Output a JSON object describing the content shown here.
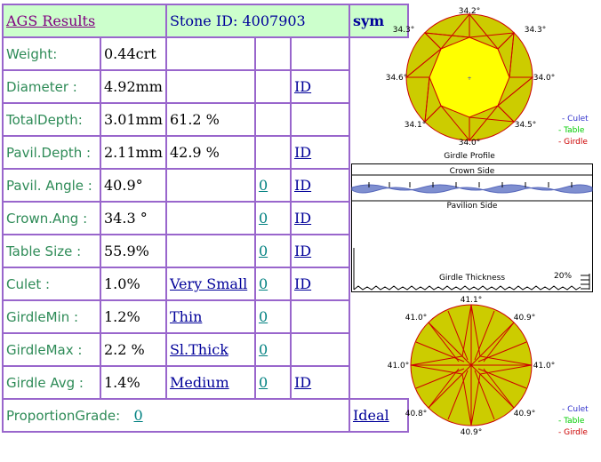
{
  "header": {
    "title": "AGS Results",
    "stone_id": "Stone ID:  4007903",
    "sym": "sym"
  },
  "rows": [
    {
      "label": "Weight:",
      "value": "0.44crt",
      "extra": "",
      "grade": "",
      "sym": ""
    },
    {
      "label": "Diameter :",
      "value": "4.92mm",
      "extra": "",
      "grade": "",
      "sym": "ID"
    },
    {
      "label": "TotalDepth:",
      "value": "3.01mm",
      "extra": "61.2 %",
      "grade": "",
      "sym": ""
    },
    {
      "label": "Pavil.Depth :",
      "value": "2.11mm",
      "extra": "42.9 %",
      "grade": "",
      "sym": "ID"
    },
    {
      "label": "Pavil. Angle :",
      "value": "40.9°",
      "extra": "",
      "grade": "0",
      "sym": "ID"
    },
    {
      "label": "Crown.Ang :",
      "value": "34.3 °",
      "extra": "",
      "grade": "0",
      "sym": "ID"
    },
    {
      "label": "Table Size :",
      "value": "55.9%",
      "extra": "",
      "grade": "0",
      "sym": "ID"
    },
    {
      "label": "Culet :",
      "value": "1.0%",
      "extra": "Very Small",
      "grade": "0",
      "sym": "ID"
    },
    {
      "label": "GirdleMin :",
      "value": "1.2%",
      "extra": "Thin",
      "grade": "0",
      "sym": ""
    },
    {
      "label": "GirdleMax :",
      "value": "2.2 %",
      "extra": "Sl.Thick",
      "grade": "0",
      "sym": ""
    },
    {
      "label": "Girdle Avg :",
      "value": "1.4%",
      "extra": "Medium",
      "grade": "0",
      "sym": "ID"
    }
  ],
  "proportion": {
    "label": "ProportionGrade:",
    "grade": "0",
    "result": "Ideal"
  },
  "crown_diagram": {
    "angles": {
      "top": "34.2°",
      "top_left": "34.3°",
      "top_right": "34.3°",
      "left": "34.6°",
      "right": "34.0°",
      "bottom_left": "34.1°",
      "bottom_right": "34.5°",
      "bottom": "34.0°"
    },
    "legend": [
      "- Culet",
      "- Table",
      "- Girdle"
    ],
    "colors": {
      "fill": "#cccc00",
      "table": "#ffff00",
      "lines": "#cc0000",
      "culet": "#3333cc",
      "table_legend": "#00cc00",
      "girdle_legend": "#cc0000"
    }
  },
  "girdle_profile": {
    "title": "Girdle Profile",
    "crown_side": "Crown Side",
    "pavilion_side": "Pavilion Side",
    "thickness_label": "Girdle Thickness",
    "thickness_value": "20%"
  },
  "pavilion_diagram": {
    "angles": {
      "top": "41.1°",
      "top_left": "41.0°",
      "top_right": "40.9°",
      "left": "41.0°",
      "right": "41.0°",
      "bottom_left": "40.8°",
      "bottom_right": "40.9°",
      "bottom": "40.9°"
    },
    "legend": [
      "- Culet",
      "- Table",
      "- Girdle"
    ]
  }
}
